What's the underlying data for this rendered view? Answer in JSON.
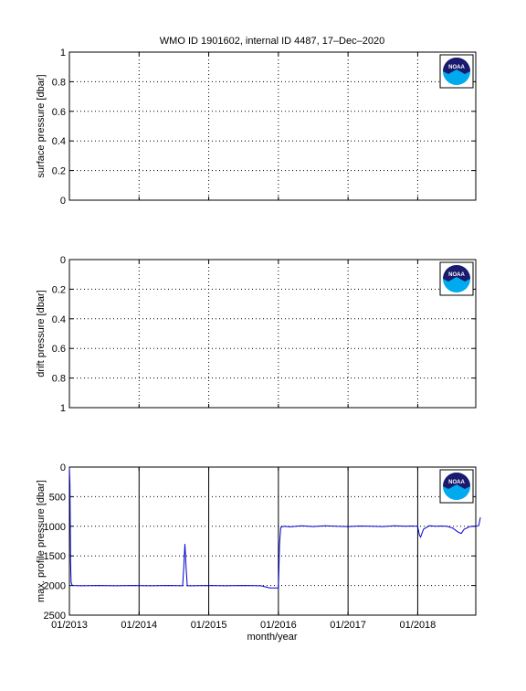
{
  "title": "WMO ID 1901602, internal ID 4487, 17–Dec–2020",
  "colors": {
    "line": "#0000cc",
    "axes": "#000000",
    "grid": "#000000",
    "logo_navy": "#1a1a6e",
    "logo_cyan": "#00aaee"
  },
  "logo": {
    "text": "NOAA"
  },
  "x_axis": {
    "label": "month/year",
    "ticks": [
      {
        "t": 0,
        "label": "01/2013"
      },
      {
        "t": 12,
        "label": "01/2014"
      },
      {
        "t": 24,
        "label": "01/2015"
      },
      {
        "t": 36,
        "label": "01/2016"
      },
      {
        "t": 48,
        "label": "01/2017"
      },
      {
        "t": 60,
        "label": "01/2018"
      }
    ],
    "range": [
      0,
      70
    ]
  },
  "chart_data": [
    {
      "type": "line",
      "ylabel": "surface pressure [dbar]",
      "ylim": [
        0,
        1
      ],
      "y_reversed": false,
      "y_ticks": [
        "0",
        "0.2",
        "0.4",
        "0.6",
        "0.8",
        "1"
      ],
      "grid": true,
      "vertical_grid_solid": false,
      "series": []
    },
    {
      "type": "line",
      "ylabel": "drift pressure [dbar]",
      "ylim": [
        0,
        1
      ],
      "y_reversed": true,
      "y_ticks": [
        "0",
        "0.2",
        "0.4",
        "0.6",
        "0.8",
        "1"
      ],
      "grid": true,
      "vertical_grid_solid": false,
      "series": []
    },
    {
      "type": "line",
      "ylabel": "max. profile pressure [dbar]",
      "ylim": [
        0,
        2500
      ],
      "y_reversed": true,
      "y_ticks": [
        "0",
        "500",
        "1000",
        "1500",
        "2000",
        "2500"
      ],
      "grid": true,
      "vertical_grid_solid": true,
      "series": [
        {
          "x": [
            0,
            0.1,
            0.2,
            0.3,
            0.5,
            2,
            5,
            8,
            11,
            14,
            17,
            19.5,
            19.7,
            19.9,
            20.1,
            20.3,
            21,
            24,
            27,
            30,
            33,
            34.5,
            35.5,
            36.0,
            36.2,
            36.4,
            36.6,
            37,
            38,
            40,
            42,
            44,
            46,
            48,
            50,
            52,
            54,
            56,
            58,
            59,
            60,
            60.3,
            60.5,
            61,
            62,
            63,
            64,
            65,
            66,
            67,
            67.5,
            68,
            69,
            70.5,
            70.8
          ],
          "y": [
            10,
            300,
            1600,
            1950,
            2000,
            2005,
            2000,
            2005,
            2000,
            2005,
            2000,
            2005,
            1700,
            1300,
            1700,
            2005,
            2005,
            2000,
            2005,
            2000,
            2005,
            2040,
            2040,
            2040,
            1300,
            1020,
            1010,
            1000,
            1010,
            990,
            1005,
            990,
            1000,
            1005,
            995,
            1000,
            1005,
            990,
            1000,
            995,
            1000,
            1150,
            1180,
            1050,
            990,
            1000,
            995,
            1000,
            1030,
            1100,
            1120,
            1050,
            1005,
            990,
            850
          ]
        }
      ]
    }
  ]
}
